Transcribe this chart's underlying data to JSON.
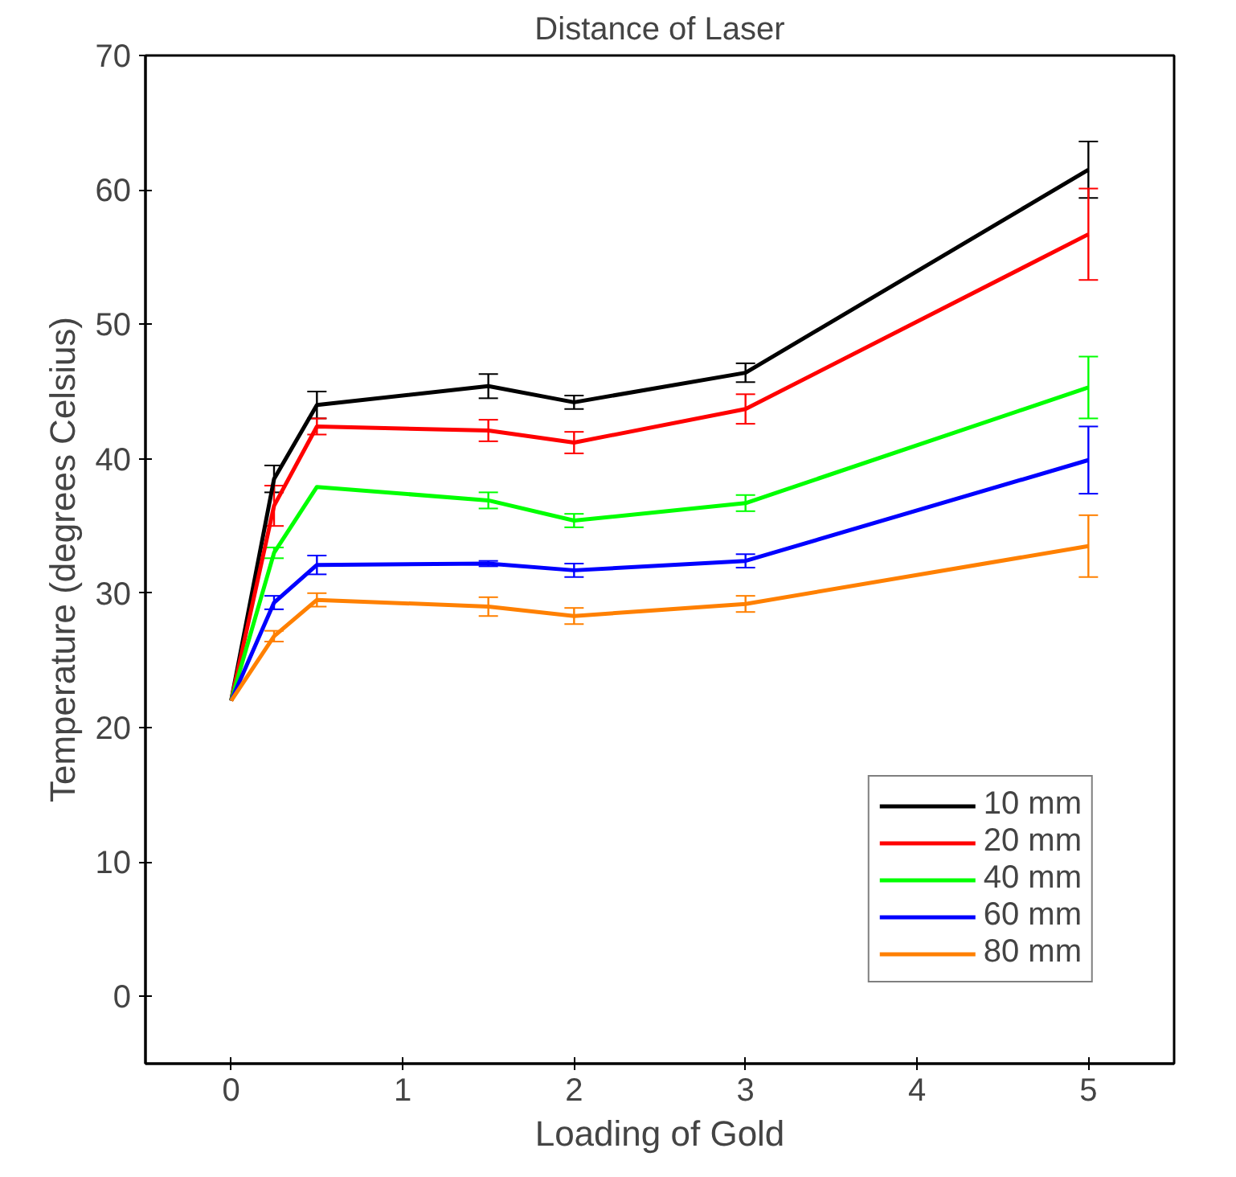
{
  "chart_data": {
    "type": "line",
    "title": "Distance of Laser",
    "xlabel": "Loading of Gold",
    "ylabel": "Temperature (degrees Celsius)",
    "x": [
      0,
      0.25,
      0.5,
      1.5,
      2,
      3,
      5
    ],
    "xlim": [
      -0.5,
      5.5
    ],
    "xticks": [
      0,
      1,
      2,
      3,
      4,
      5
    ],
    "ylim": [
      -5,
      70
    ],
    "yticks": [
      0,
      10,
      20,
      30,
      40,
      50,
      60,
      70
    ],
    "grid": false,
    "legend": "bottom right",
    "marker": "none",
    "line_style": "solid",
    "series": [
      {
        "name": "10 mm",
        "color": "#000000",
        "values": [
          22,
          38.5,
          44,
          45.4,
          44.2,
          46.4,
          61.5
        ],
        "errors": [
          null,
          1,
          1,
          0.9,
          0.5,
          0.7,
          2.1
        ]
      },
      {
        "name": "20 mm",
        "color": "#ff0000",
        "values": [
          22,
          36.5,
          42.4,
          42.1,
          41.2,
          43.7,
          56.7
        ],
        "errors": [
          null,
          1.5,
          0.6,
          0.8,
          0.8,
          1.1,
          3.4
        ]
      },
      {
        "name": "40 mm",
        "color": "#00ff00",
        "values": [
          22,
          33,
          37.9,
          36.9,
          35.4,
          36.7,
          45.3
        ],
        "errors": [
          null,
          0.4,
          null,
          0.6,
          0.5,
          0.6,
          2.3
        ]
      },
      {
        "name": "60 mm",
        "color": "#0000ff",
        "values": [
          22,
          29.3,
          32.1,
          32.2,
          31.7,
          32.4,
          39.9
        ],
        "errors": [
          null,
          0.5,
          0.7,
          0.2,
          0.5,
          0.5,
          2.5
        ]
      },
      {
        "name": "80 mm",
        "color": "#ff8000",
        "values": [
          22,
          26.8,
          29.5,
          29.0,
          28.3,
          29.2,
          33.5
        ],
        "errors": [
          null,
          0.4,
          0.5,
          0.7,
          0.6,
          0.6,
          2.3
        ]
      }
    ]
  }
}
